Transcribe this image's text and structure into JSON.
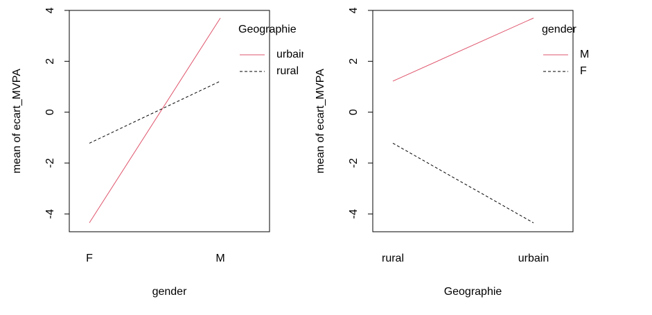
{
  "chart_data": [
    {
      "type": "line",
      "categories": [
        "F",
        "M"
      ],
      "xlabel": "gender",
      "ylabel": "mean of  ecart_MVPA",
      "ylim": [
        -4.7,
        4.0
      ],
      "yticks": [
        -4,
        -2,
        0,
        2,
        4
      ],
      "ytick_labels": [
        "-4",
        "-2",
        "0",
        "2",
        "4"
      ],
      "grid": false,
      "legend": {
        "title": "Geographie",
        "placement": "top-right",
        "entries": [
          "urbain",
          "rural"
        ]
      },
      "series": [
        {
          "name": "urbain",
          "values": [
            -4.35,
            3.7
          ],
          "color": "#DF536B",
          "dash": "solid"
        },
        {
          "name": "rural",
          "values": [
            -1.22,
            1.22
          ],
          "color": "#000000",
          "dash": "dashed"
        }
      ]
    },
    {
      "type": "line",
      "categories": [
        "rural",
        "urbain"
      ],
      "xlabel": "Geographie",
      "ylabel": "mean of  ecart_MVPA",
      "ylim": [
        -4.7,
        4.0
      ],
      "yticks": [
        -4,
        -2,
        0,
        2,
        4
      ],
      "ytick_labels": [
        "-4",
        "-2",
        "0",
        "2",
        "4"
      ],
      "grid": false,
      "legend": {
        "title": "gender",
        "placement": "top-right",
        "entries": [
          "M",
          "F"
        ]
      },
      "series": [
        {
          "name": "M",
          "values": [
            1.22,
            3.7
          ],
          "color": "#DF536B",
          "dash": "solid"
        },
        {
          "name": "F",
          "values": [
            -1.22,
            -4.35
          ],
          "color": "#000000",
          "dash": "dashed"
        }
      ]
    }
  ]
}
